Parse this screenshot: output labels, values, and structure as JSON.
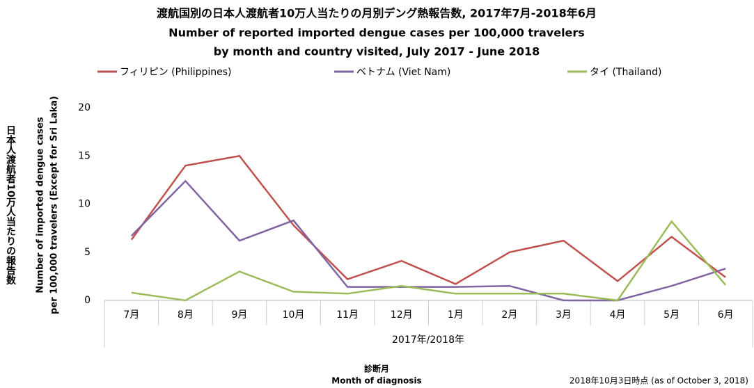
{
  "chart_data": {
    "type": "line",
    "title": "渡航国別の日本人渡航者10万人当たりの月別デング熱報告数, 2017年7月-2018年6月",
    "subtitle": [
      "Number of reported imported dengue cases per 100,000 travelers",
      "by month and country visited, July 2017 - June 2018"
    ],
    "categories": [
      "7月",
      "8月",
      "9月",
      "10月",
      "11月",
      "12月",
      "1月",
      "2月",
      "3月",
      "4月",
      "5月",
      "6月"
    ],
    "series": [
      {
        "name": "フィリピン (Philippines)",
        "color": "#c0504d",
        "values": [
          6.3,
          14.0,
          15.0,
          7.8,
          2.2,
          4.1,
          1.7,
          5.0,
          6.2,
          2.0,
          6.6,
          2.4
        ]
      },
      {
        "name": "ベトナム (Viet Nam)",
        "color": "#8064a2",
        "values": [
          6.7,
          12.4,
          6.2,
          8.3,
          1.4,
          1.4,
          1.4,
          1.5,
          0,
          0,
          1.5,
          3.3
        ]
      },
      {
        "name": "タイ (Thailand)",
        "color": "#9bbb59",
        "values": [
          0.8,
          0,
          3.0,
          0.9,
          0.7,
          1.5,
          0.7,
          0.7,
          0.7,
          0,
          8.2,
          1.6
        ]
      }
    ],
    "ylim": [
      0,
      20
    ],
    "yticks": [
      0,
      5,
      10,
      15,
      20
    ],
    "grid": false,
    "legend": "top",
    "y_label_ja": "日本人渡航者10万人当たりの報告数",
    "y_label": [
      "Number of imported dengue cases",
      "per 100,000 travelers (Except for Sri Laka)"
    ],
    "x_label": "2017年/2018年",
    "x_title": [
      "診断月",
      "Month of diagnosis"
    ],
    "note": "2018年10月3日時点 (as of October 3, 2018)"
  }
}
